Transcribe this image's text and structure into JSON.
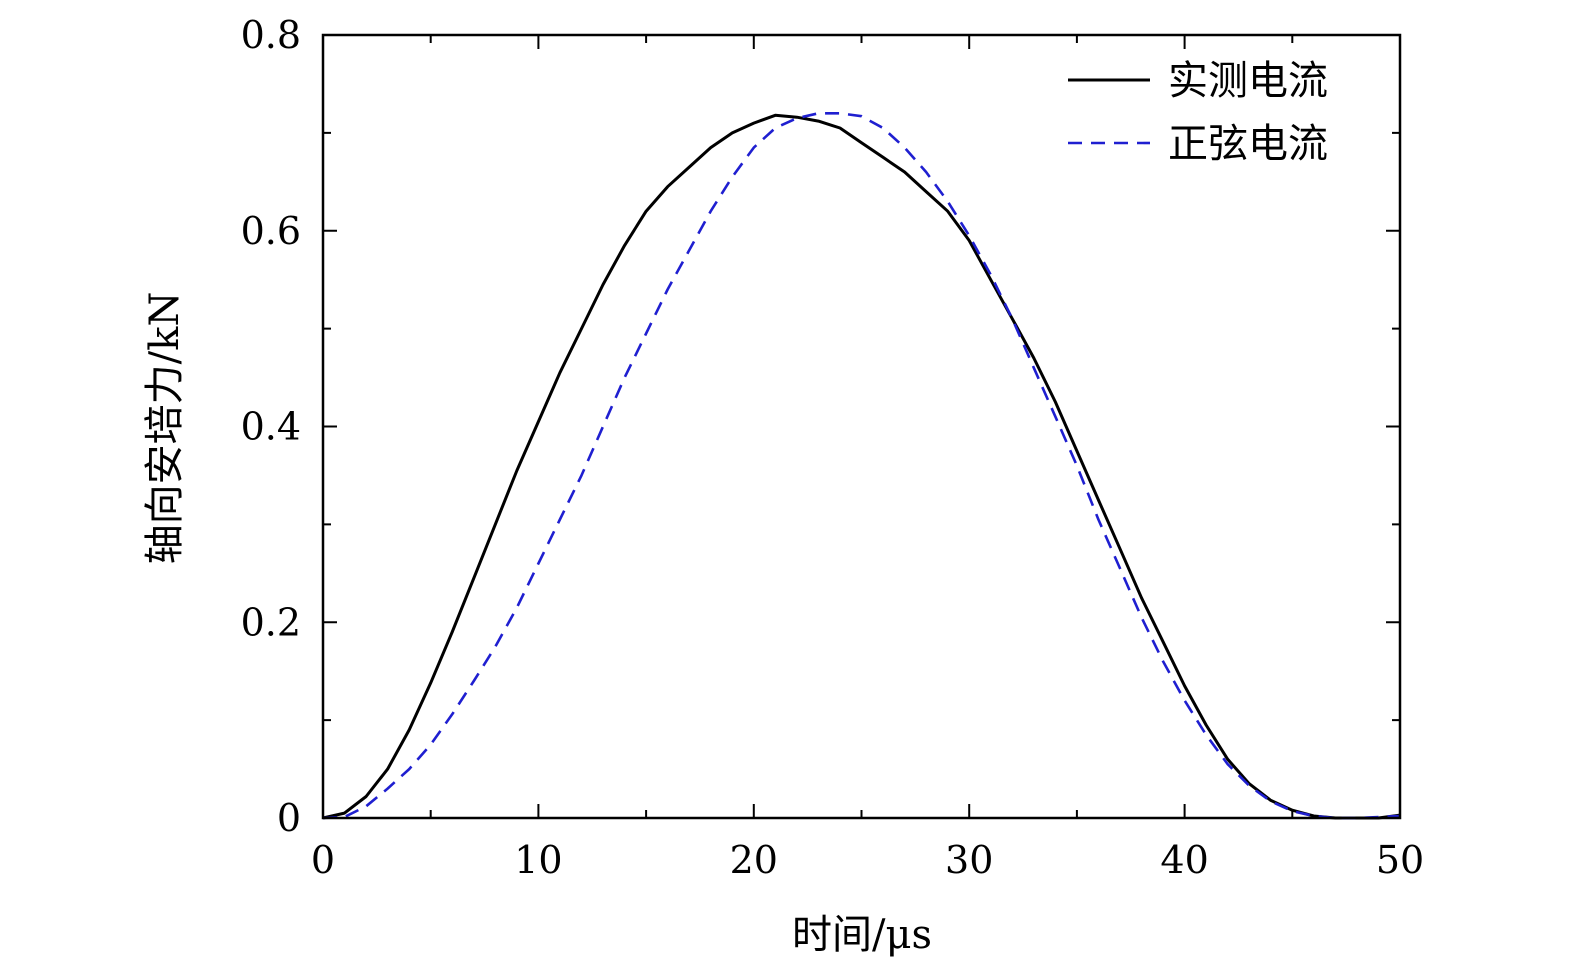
{
  "chart_data": {
    "type": "line",
    "title": "",
    "xlabel": "时间/μs",
    "ylabel": "轴向安培力/kN",
    "xlim": [
      0,
      50
    ],
    "ylim": [
      0,
      0.8
    ],
    "x_ticks": [
      0,
      10,
      20,
      30,
      40,
      50
    ],
    "x_tick_labels": [
      "0",
      "10",
      "20",
      "30",
      "40",
      "50"
    ],
    "y_ticks": [
      0,
      0.2,
      0.4,
      0.6,
      0.8
    ],
    "y_tick_labels": [
      "0",
      "0.2",
      "0.4",
      "0.6",
      "0.8"
    ],
    "x_minor_step": 5,
    "y_minor_step": 0.1,
    "legend_position": "top-right",
    "grid": false,
    "series": [
      {
        "name": "实测电流",
        "style": "solid",
        "color": "#000000",
        "x": [
          0,
          1,
          2,
          3,
          4,
          5,
          6,
          7,
          8,
          9,
          10,
          11,
          12,
          13,
          14,
          15,
          16,
          17,
          18,
          19,
          20,
          21,
          22,
          23,
          24,
          25,
          26,
          27,
          28,
          29,
          30,
          31,
          32,
          33,
          34,
          35,
          36,
          37,
          38,
          39,
          40,
          41,
          42,
          43,
          44,
          45,
          46,
          47,
          48,
          49,
          50
        ],
        "y": [
          0,
          0.005,
          0.022,
          0.05,
          0.09,
          0.138,
          0.19,
          0.245,
          0.3,
          0.355,
          0.405,
          0.455,
          0.5,
          0.545,
          0.585,
          0.62,
          0.645,
          0.665,
          0.685,
          0.7,
          0.71,
          0.718,
          0.716,
          0.712,
          0.705,
          0.69,
          0.675,
          0.66,
          0.64,
          0.62,
          0.59,
          0.55,
          0.51,
          0.47,
          0.425,
          0.375,
          0.325,
          0.275,
          0.225,
          0.18,
          0.135,
          0.095,
          0.06,
          0.035,
          0.018,
          0.008,
          0.002,
          0,
          0,
          0,
          0.003
        ]
      },
      {
        "name": "正弦电流",
        "style": "dashed",
        "color": "#1f1fd0",
        "x": [
          0,
          1,
          2,
          3,
          4,
          5,
          6,
          7,
          8,
          9,
          10,
          11,
          12,
          13,
          14,
          15,
          16,
          17,
          18,
          19,
          20,
          21,
          22,
          23,
          24,
          25,
          26,
          27,
          28,
          29,
          30,
          31,
          32,
          33,
          34,
          35,
          36,
          37,
          38,
          39,
          40,
          41,
          42,
          43,
          44,
          45,
          46,
          47,
          48,
          49,
          50
        ],
        "y": [
          0,
          0.001,
          0.012,
          0.03,
          0.05,
          0.075,
          0.106,
          0.14,
          0.175,
          0.215,
          0.26,
          0.305,
          0.35,
          0.4,
          0.45,
          0.495,
          0.54,
          0.58,
          0.62,
          0.655,
          0.685,
          0.705,
          0.715,
          0.72,
          0.72,
          0.717,
          0.705,
          0.685,
          0.66,
          0.63,
          0.595,
          0.555,
          0.51,
          0.46,
          0.41,
          0.36,
          0.305,
          0.255,
          0.205,
          0.16,
          0.12,
          0.085,
          0.055,
          0.033,
          0.017,
          0.007,
          0.002,
          0,
          0,
          0.001,
          0.002
        ]
      }
    ]
  }
}
